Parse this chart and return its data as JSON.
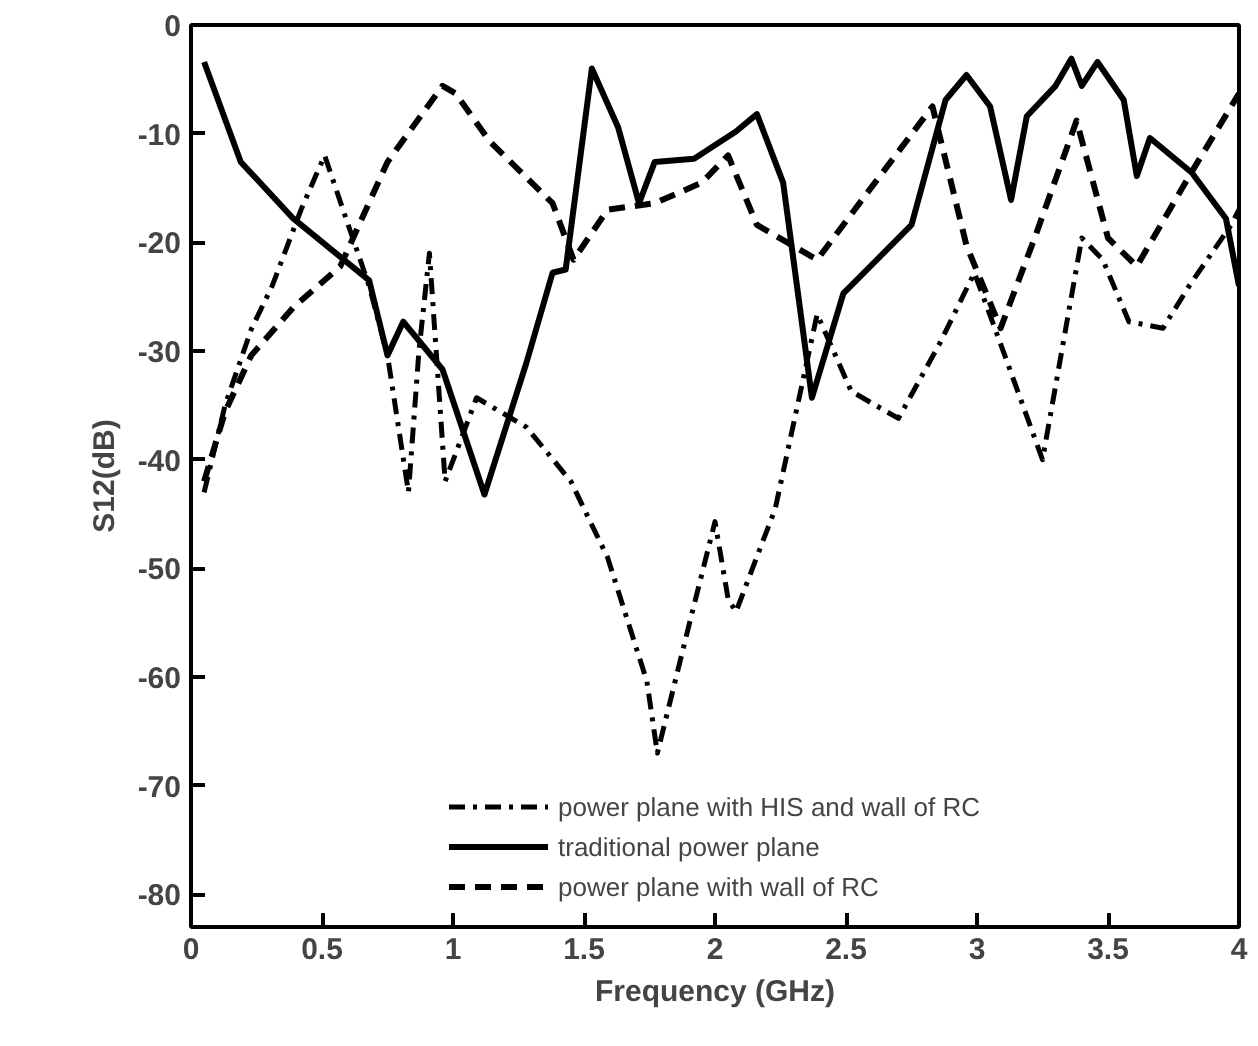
{
  "chart_data": {
    "type": "line",
    "xlabel": "Frequency (GHz)",
    "ylabel": "S12(dB)",
    "xlim": [
      0,
      4
    ],
    "ylim": [
      -83,
      0
    ],
    "xticks": [
      0,
      0.5,
      1,
      1.5,
      2,
      2.5,
      3,
      3.5,
      4
    ],
    "yticks": [
      0,
      -10,
      -20,
      -30,
      -40,
      -50,
      -60,
      -70,
      -80
    ],
    "grid": false,
    "legend": "bottom",
    "series": [
      {
        "name": "power plane with HIS and wall of RC",
        "color": "#000000",
        "line_style": "dashdot",
        "x": [
          0.05,
          0.13,
          0.23,
          0.31,
          0.42,
          0.51,
          0.6,
          0.68,
          0.75,
          0.83,
          0.87,
          0.91,
          0.97,
          1.09,
          1.28,
          1.45,
          1.59,
          1.74,
          1.78,
          1.9,
          2.0,
          2.05,
          2.08,
          2.23,
          2.39,
          2.52,
          2.7,
          2.86,
          2.99,
          3.1,
          3.25,
          3.4,
          3.48,
          3.58,
          3.71,
          3.81,
          3.97,
          4.0
        ],
        "values": [
          -43,
          -35,
          -28,
          -24,
          -17,
          -12,
          -18.4,
          -24,
          -30.4,
          -43,
          -30,
          -21,
          -42,
          -34.3,
          -37,
          -42,
          -49,
          -60.4,
          -67,
          -55.3,
          -45.7,
          -52.8,
          -54,
          -44.5,
          -26.6,
          -33.7,
          -36.2,
          -29.2,
          -22.8,
          -30,
          -40,
          -19.6,
          -21.6,
          -27.3,
          -27.9,
          -24,
          -18.4,
          -17
        ]
      },
      {
        "name": "traditional power plane",
        "color": "#000000",
        "line_style": "solid",
        "x": [
          0.05,
          0.19,
          0.39,
          0.68,
          0.75,
          0.81,
          0.96,
          1.12,
          1.28,
          1.38,
          1.43,
          1.53,
          1.63,
          1.71,
          1.77,
          1.92,
          2.08,
          2.16,
          2.26,
          2.37,
          2.49,
          2.75,
          2.88,
          2.96,
          3.05,
          3.13,
          3.19,
          3.3,
          3.36,
          3.4,
          3.46,
          3.56,
          3.61,
          3.66,
          3.82,
          3.95,
          4.0
        ],
        "values": [
          -3.4,
          -12.6,
          -17.8,
          -23.5,
          -30.4,
          -27.3,
          -31.7,
          -43.2,
          -31.1,
          -22.8,
          -22.5,
          -4.0,
          -9.4,
          -16.4,
          -12.6,
          -12.3,
          -9.8,
          -8.2,
          -14.5,
          -34.3,
          -24.7,
          -18.4,
          -6.9,
          -4.6,
          -7.5,
          -16.1,
          -8.4,
          -5.6,
          -3.1,
          -5.6,
          -3.4,
          -6.9,
          -13.9,
          -10.4,
          -13.6,
          -17.8,
          -24
        ]
      },
      {
        "name": "power plane with wall of RC",
        "color": "#000000",
        "line_style": "dashed",
        "x": [
          0.05,
          0.13,
          0.23,
          0.39,
          0.57,
          0.75,
          0.96,
          1.01,
          1.14,
          1.38,
          1.46,
          1.59,
          1.77,
          1.95,
          2.05,
          2.16,
          2.39,
          2.57,
          2.83,
          2.96,
          3.09,
          3.22,
          3.38,
          3.5,
          3.61,
          3.81,
          4.0
        ],
        "values": [
          -42,
          -35.6,
          -30.4,
          -26,
          -22.2,
          -12.6,
          -5.6,
          -6.3,
          -10.7,
          -16.4,
          -21.6,
          -17,
          -16.4,
          -14.5,
          -12,
          -18.4,
          -21.6,
          -15.8,
          -7.5,
          -20.3,
          -27.9,
          -19.6,
          -8.8,
          -19.6,
          -22.2,
          -13.9,
          -6.3
        ]
      }
    ]
  }
}
